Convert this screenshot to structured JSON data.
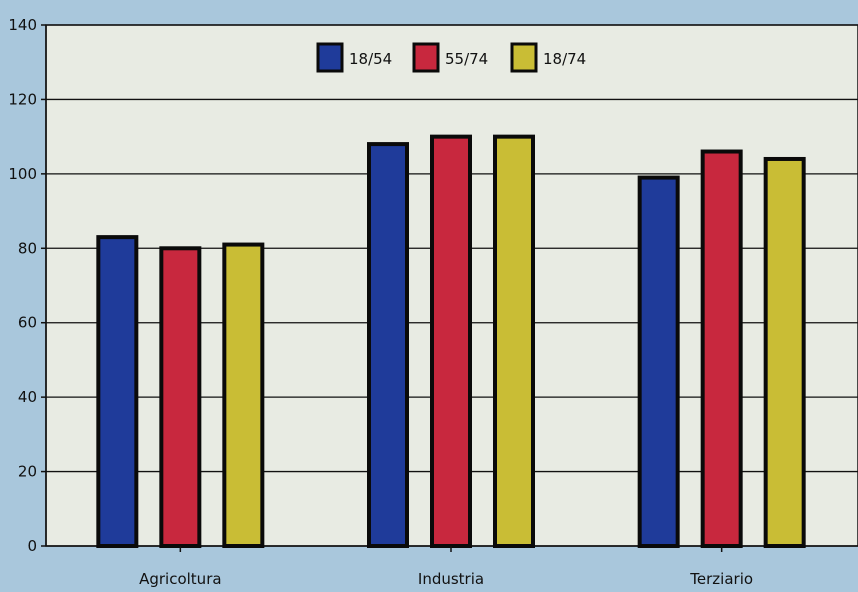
{
  "chart_data": {
    "type": "bar",
    "categories": [
      "Agricoltura",
      "Industria",
      "Terziario"
    ],
    "series": [
      {
        "name": "18/54",
        "color": "#1f3b9a",
        "values": [
          83,
          108,
          99
        ]
      },
      {
        "name": "55/74",
        "color": "#c8283e",
        "values": [
          80,
          110,
          106
        ]
      },
      {
        "name": "18/74",
        "color": "#c9bd35",
        "values": [
          81,
          110,
          104
        ]
      }
    ],
    "ylim": [
      0,
      140
    ],
    "yticks": [
      0,
      20,
      40,
      60,
      80,
      100,
      120,
      140
    ],
    "grid": true,
    "legend_position": "top-center",
    "plot_background": "#e8ebe3",
    "outer_background": "#a9c7dc"
  }
}
